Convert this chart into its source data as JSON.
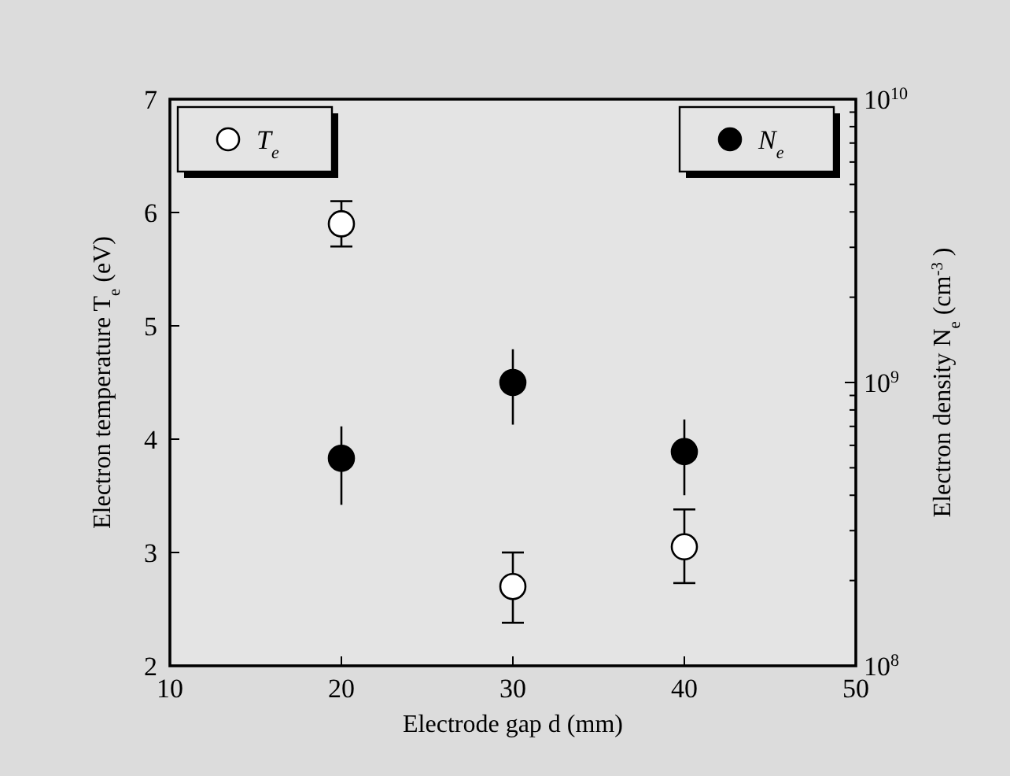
{
  "chart_data": {
    "type": "scatter",
    "xlabel": "Electrode gap d (mm)",
    "ylabel": "Electron temperature T$_{e}$ (eV)",
    "y2label": "Electron density N$_{e}$ (cm$^{-3}$)",
    "x": [
      20,
      30,
      40
    ],
    "xlim": [
      10,
      50
    ],
    "xticks": [
      10,
      20,
      30,
      40,
      50
    ],
    "ylim": [
      2,
      7
    ],
    "yticks": [
      2,
      3,
      4,
      5,
      6,
      7
    ],
    "y2lim": [
      100000000.0,
      10000000000.0
    ],
    "y2ticks": [
      {
        "value": 100000000.0,
        "label": "10$^{8}$"
      },
      {
        "value": 200000000.0,
        "label": null
      },
      {
        "value": 300000000.0,
        "label": null
      },
      {
        "value": 400000000.0,
        "label": null
      },
      {
        "value": 500000000.0,
        "label": null
      },
      {
        "value": 600000000.0,
        "label": null
      },
      {
        "value": 700000000.0,
        "label": null
      },
      {
        "value": 800000000.0,
        "label": null
      },
      {
        "value": 900000000.0,
        "label": null
      },
      {
        "value": 1000000000.0,
        "label": "10$^{9}$"
      },
      {
        "value": 2000000000.0,
        "label": null
      },
      {
        "value": 3000000000.0,
        "label": null
      },
      {
        "value": 4000000000.0,
        "label": null
      },
      {
        "value": 5000000000.0,
        "label": null
      },
      {
        "value": 6000000000.0,
        "label": null
      },
      {
        "value": 7000000000.0,
        "label": null
      },
      {
        "value": 8000000000.0,
        "label": null
      },
      {
        "value": 9000000000.0,
        "label": null
      },
      {
        "value": 10000000000.0,
        "label": "10$^{10}$"
      }
    ],
    "log": "y2",
    "legend": "top",
    "marker": "circle",
    "series": [
      {
        "name": "T$_{e}$",
        "color": "#ffffff",
        "values": [
          5.9,
          2.7,
          3.05
        ],
        "errors": [
          [
            5.7,
            6.1
          ],
          [
            2.38,
            3.0
          ],
          [
            2.73,
            3.38
          ]
        ]
      },
      {
        "name": "N$_{e}$",
        "color": "#000000",
        "axis": "y2",
        "values": [
          540000000.0,
          1000000000.0,
          570000000.0
        ],
        "errors": [
          [
            370000000.0,
            700000000.0
          ],
          [
            710000000.0,
            1310000000.0
          ],
          [
            400000000.0,
            740000000.0
          ]
        ]
      }
    ]
  }
}
